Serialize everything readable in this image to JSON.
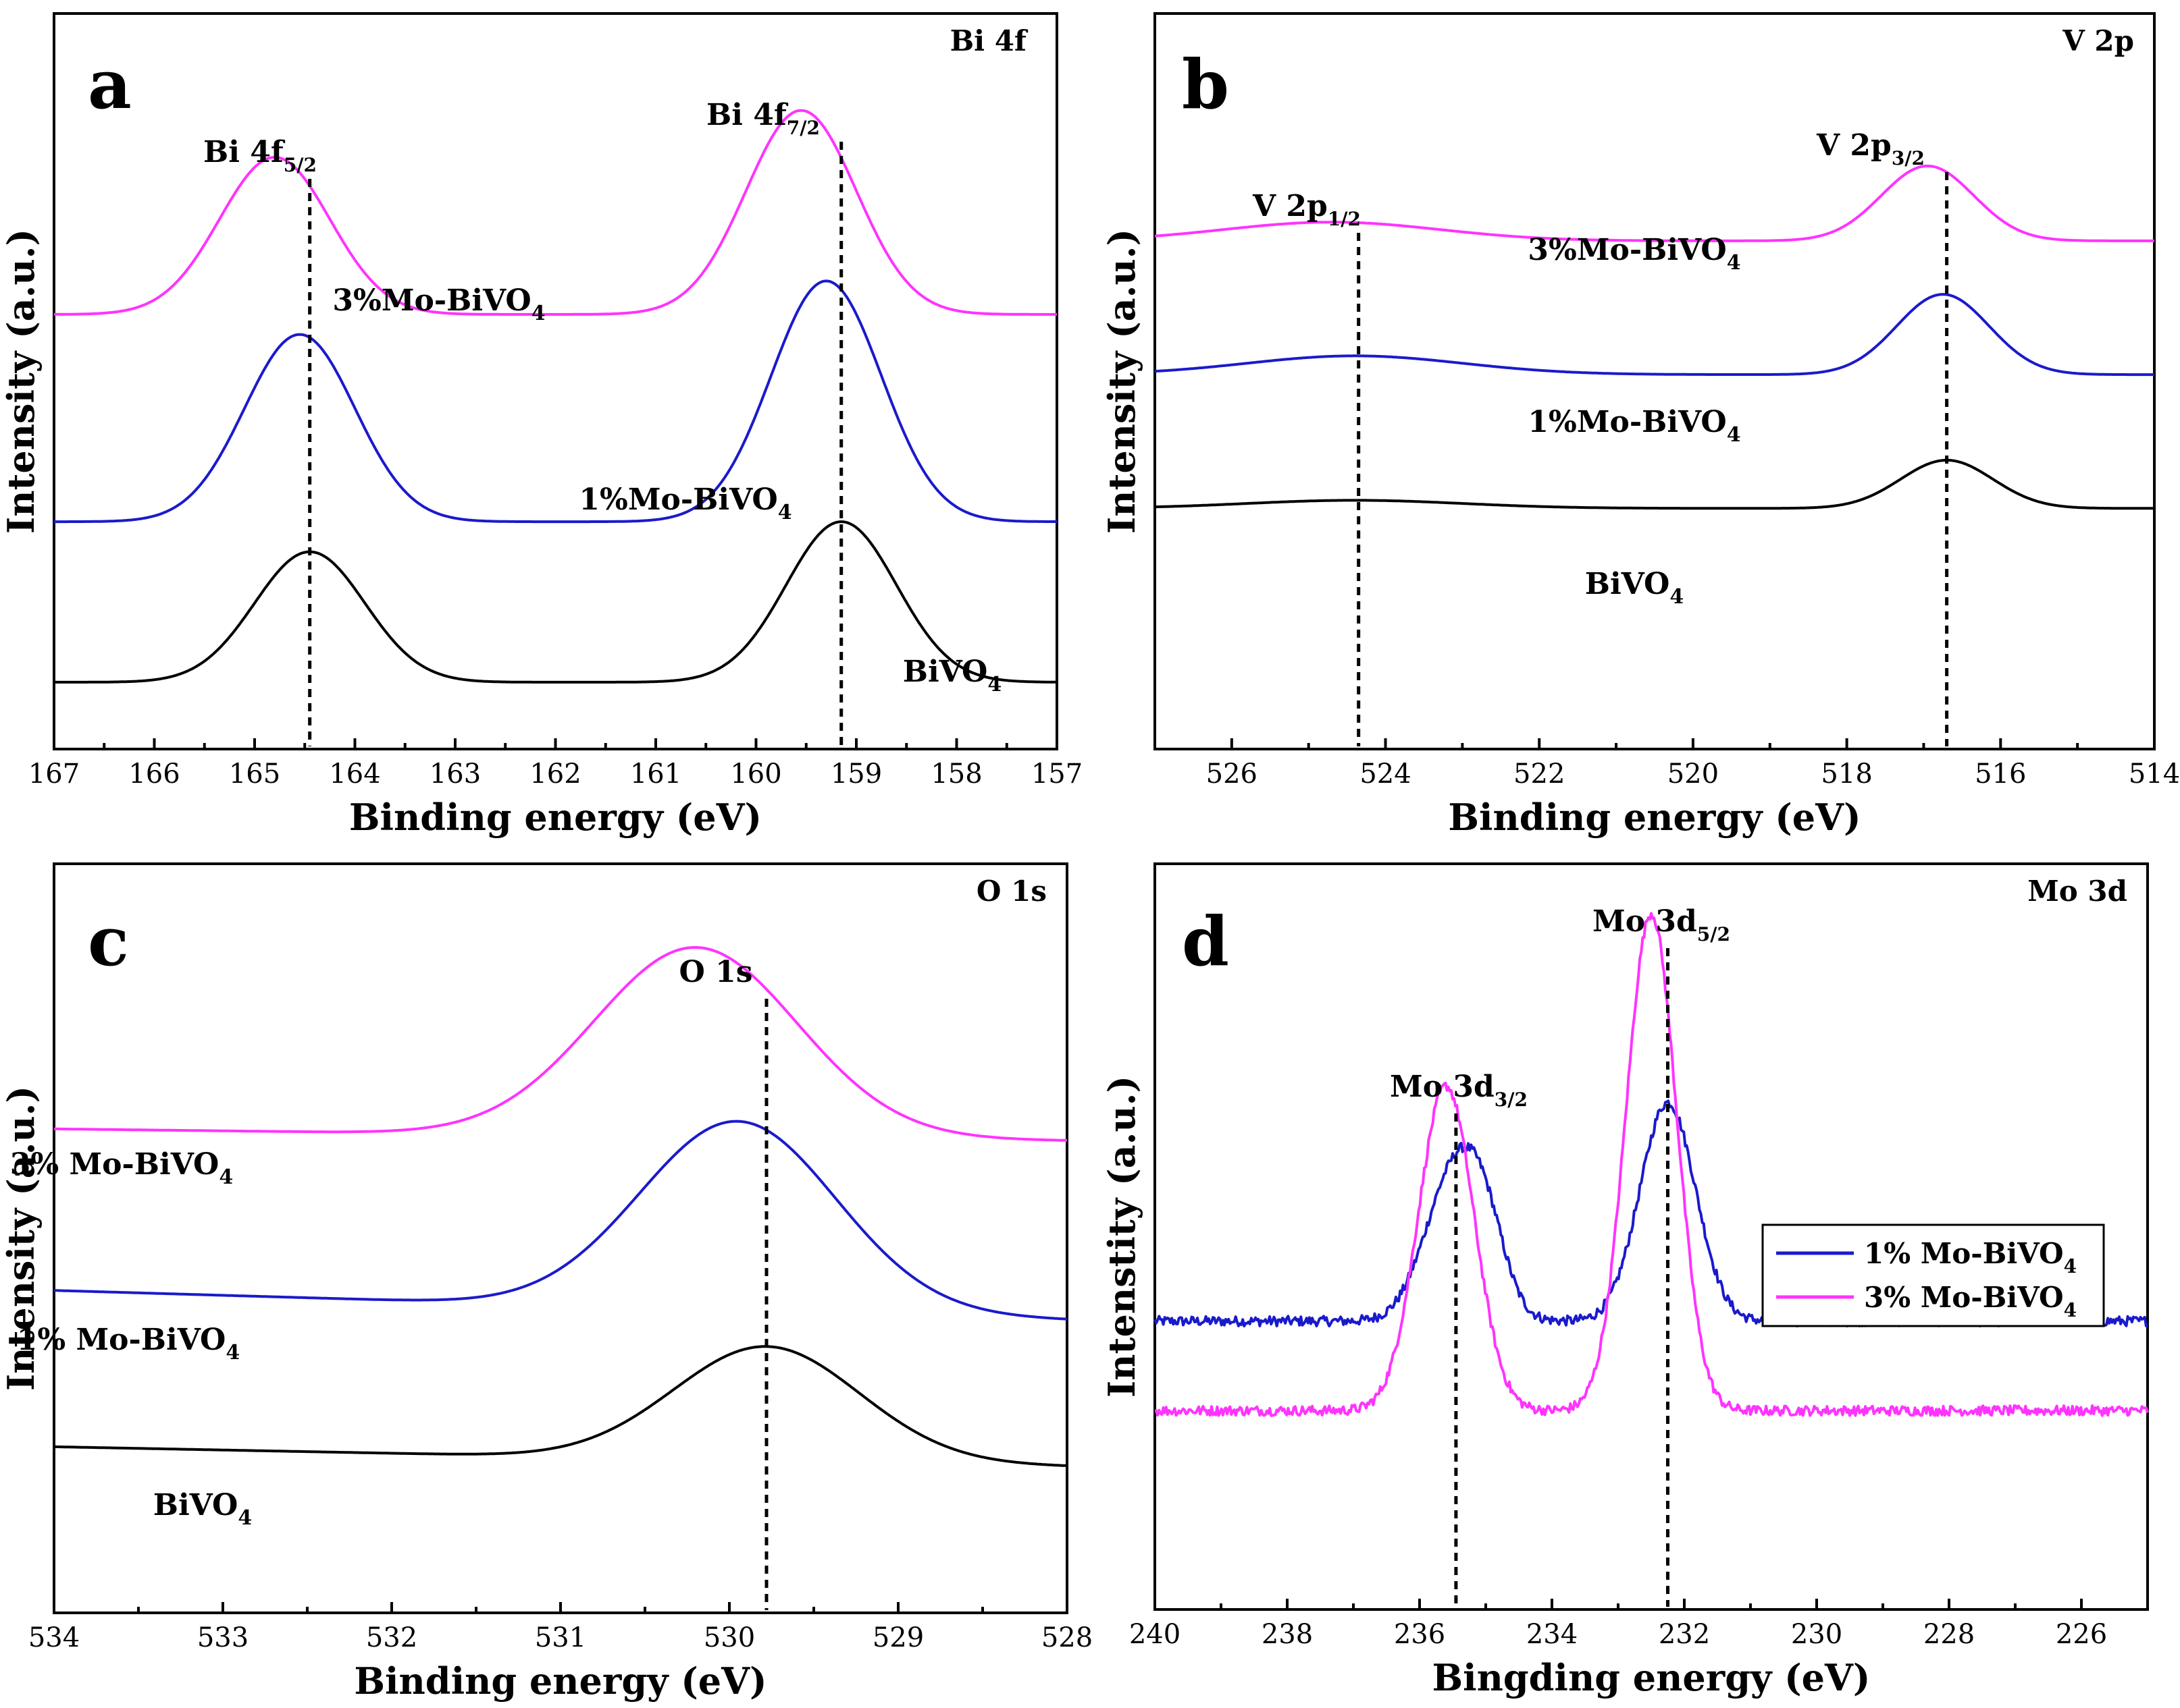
{
  "chart_data": [
    {
      "type": "line",
      "panel": "a",
      "corner_label": "Bi 4f",
      "xlabel": "Binding energy (eV)",
      "ylabel": "Intensity (a.u.)",
      "xlim": [
        167,
        157
      ],
      "xticks": [
        167,
        166,
        165,
        164,
        163,
        162,
        161,
        160,
        159,
        158,
        157
      ],
      "peaks_label": [
        {
          "text": "Bi 4f",
          "sub": "5/2",
          "x": 164.45
        },
        {
          "text": "Bi 4f",
          "sub": "7/2",
          "x": 159.15
        }
      ],
      "series": [
        {
          "name": "BiVO",
          "sub": "4",
          "color": "#000000",
          "baseline": 0.0,
          "slope": 0.0,
          "peaks": [
            {
              "x": 164.45,
              "h": 0.39,
              "w": 0.55
            },
            {
              "x": 159.15,
              "h": 0.48,
              "w": 0.55
            }
          ]
        },
        {
          "name": "1%Mo-BiVO",
          "sub": "4",
          "color": "#1a1acc",
          "baseline": 0.48,
          "slope": 0.0,
          "peaks": [
            {
              "x": 164.55,
              "h": 0.56,
              "w": 0.55
            },
            {
              "x": 159.3,
              "h": 0.72,
              "w": 0.55
            }
          ]
        },
        {
          "name": "3%Mo-BiVO",
          "sub": "4",
          "color": "#ff33ff",
          "baseline": 1.1,
          "slope": 0.0,
          "peaks": [
            {
              "x": 164.8,
              "h": 0.47,
              "w": 0.55
            },
            {
              "x": 159.55,
              "h": 0.61,
              "w": 0.55
            }
          ]
        }
      ]
    },
    {
      "type": "line",
      "panel": "b",
      "corner_label": "V 2p",
      "xlabel": "Binding energy (eV)",
      "ylabel": "Intensity (a.u.)",
      "xlim": [
        527,
        514
      ],
      "xticks": [
        526,
        524,
        522,
        520,
        518,
        516,
        514
      ],
      "peaks_label": [
        {
          "text": "V 2p",
          "sub": "1/2",
          "x": 524.35
        },
        {
          "text": "V 2p",
          "sub": "3/2",
          "x": 516.7
        }
      ],
      "series": [
        {
          "name": "BiVO",
          "sub": "4",
          "color": "#000000",
          "baseline": 0.0,
          "slope": 0.0,
          "peaks": [
            {
              "x": 524.4,
              "h": 0.03,
              "w": 1.4
            },
            {
              "x": 516.7,
              "h": 0.18,
              "w": 0.6
            }
          ]
        },
        {
          "name": "1%Mo-BiVO",
          "sub": "4",
          "color": "#1a1acc",
          "baseline": 0.5,
          "slope": 0.0,
          "peaks": [
            {
              "x": 524.4,
              "h": 0.07,
              "w": 1.4
            },
            {
              "x": 516.75,
              "h": 0.3,
              "w": 0.6
            }
          ]
        },
        {
          "name": "3%Mo-BiVO",
          "sub": "4",
          "color": "#ff33ff",
          "baseline": 1.0,
          "slope": 0.0,
          "peaks": [
            {
              "x": 524.7,
              "h": 0.07,
              "w": 1.4
            },
            {
              "x": 516.95,
              "h": 0.28,
              "w": 0.6
            }
          ]
        }
      ]
    },
    {
      "type": "line",
      "panel": "c",
      "corner_label": "O 1s",
      "xlabel": "Binding energy (eV)",
      "ylabel": "Intensity (a.u.)",
      "xlim": [
        534,
        528
      ],
      "xticks": [
        534,
        533,
        532,
        531,
        530,
        529,
        528
      ],
      "peaks_label": [
        {
          "text": "O 1s",
          "sub": "",
          "x": 529.78
        }
      ],
      "series": [
        {
          "name": "BiVO",
          "sub": "4",
          "color": "#000000",
          "baseline": 0.0,
          "slope": 0.02,
          "peaks": [
            {
              "x": 529.78,
              "h": 0.35,
              "w": 0.55
            }
          ]
        },
        {
          "name": "1% Mo-BiVO",
          "sub": "4",
          "color": "#1a1acc",
          "baseline": 0.45,
          "slope": 0.03,
          "peaks": [
            {
              "x": 529.95,
              "h": 0.58,
              "w": 0.58
            }
          ]
        },
        {
          "name": "3% Mo-BiVO",
          "sub": "4",
          "color": "#ff33ff",
          "baseline": 1.0,
          "slope": 0.012,
          "peaks": [
            {
              "x": 530.2,
              "h": 0.58,
              "w": 0.6
            }
          ]
        }
      ]
    },
    {
      "type": "line",
      "panel": "d",
      "corner_label": "Mo 3d",
      "xlabel": "Bingding energy (eV)",
      "ylabel": "Intenstity (a.u.)",
      "xlim": [
        240,
        225
      ],
      "xticks": [
        240,
        238,
        236,
        234,
        232,
        230,
        228,
        226
      ],
      "peaks_label": [
        {
          "text": "Mo 3d",
          "sub": "3/2",
          "x": 235.45
        },
        {
          "text": "Mo 3d",
          "sub": "5/2",
          "x": 232.25
        }
      ],
      "legend": {
        "position": "right"
      },
      "series": [
        {
          "name": "1% Mo-BiVO",
          "sub": "4",
          "color": "#1a1acc",
          "baseline": 0.27,
          "slope": 0.0,
          "noise": 0.012,
          "peaks": [
            {
              "x": 235.45,
              "h": 0.46,
              "w": 0.45
            },
            {
              "x": 235.0,
              "h": 0.15,
              "w": 0.3
            },
            {
              "x": 232.25,
              "h": 0.66,
              "w": 0.42
            }
          ]
        },
        {
          "name": "3% Mo-BiVO",
          "sub": "4",
          "color": "#ff33ff",
          "baseline": 0.0,
          "slope": 0.0,
          "noise": 0.012,
          "peaks": [
            {
              "x": 235.6,
              "h": 0.98,
              "w": 0.42
            },
            {
              "x": 232.5,
              "h": 1.5,
              "w": 0.38
            }
          ]
        }
      ]
    }
  ]
}
